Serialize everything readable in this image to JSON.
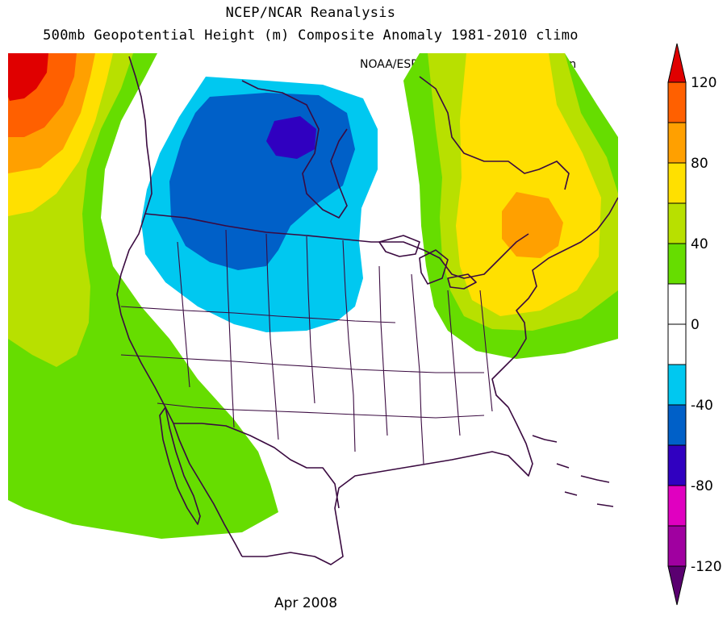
{
  "header": {
    "title": "NCEP/NCAR Reanalysis",
    "subtitle": "500mb Geopotential Height (m) Composite Anomaly 1981-2010 climo",
    "credit": "NOAA/ESRL Physical Sciences Division"
  },
  "footer": {
    "period": "Apr 2008"
  },
  "colors": {
    "credit_bar": "#f0d000",
    "coastline": "#3a0a40",
    "anomaly_scale": [
      "#5a0070",
      "#a000a0",
      "#e000c0",
      "#3000c0",
      "#0060c8",
      "#00c8f0",
      "#ffffff",
      "#ffffff",
      "#66dd00",
      "#b8e000",
      "#ffe000",
      "#ffa000",
      "#ff6000",
      "#e00000"
    ]
  },
  "colorbar": {
    "labels": [
      "120",
      "80",
      "40",
      "0",
      "-40",
      "-80",
      "-120"
    ]
  },
  "chart_data": {
    "type": "heatmap",
    "title": "500mb Geopotential Height (m) Composite Anomaly 1981-2010 climo",
    "units": "m",
    "period": "Apr 2008",
    "contour_interval": 20,
    "colorbar_range": [
      -140,
      140
    ],
    "colorbar_ticks": [
      120,
      80,
      40,
      0,
      -40,
      -80,
      -120
    ],
    "anomaly_centers": [
      {
        "region": "North Pacific (NW corner)",
        "sign": "positive",
        "approx_max": 140
      },
      {
        "region": "Canadian Prairies / Hudson Bay",
        "sign": "negative",
        "approx_min": -70
      },
      {
        "region": "Northeast US / Eastern Canada",
        "sign": "positive",
        "approx_max": 90
      },
      {
        "region": "US West Coast / Eastern Pacific",
        "sign": "positive",
        "approx_max": 30
      }
    ]
  }
}
